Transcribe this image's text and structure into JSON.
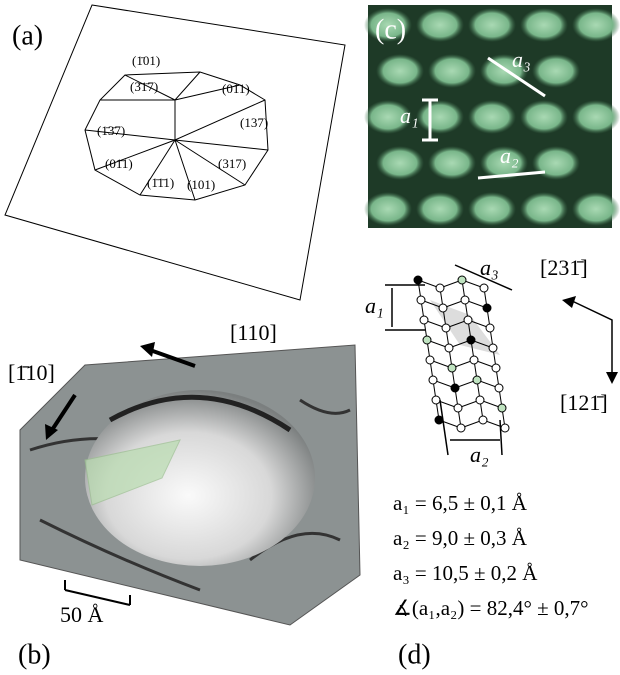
{
  "panel_a": {
    "label": "(a)",
    "facets": [
      "(1̄01)",
      "(3̄1̄7)",
      "(011)",
      "(1̄3̄7)",
      "(137)",
      "(01̄1)",
      "(317)",
      "(1̄1̄1)",
      "(101)"
    ]
  },
  "panel_b": {
    "label": "(b)",
    "direction_1": "[110]",
    "direction_2": "[1̄10]",
    "scale_bar": "50 Å"
  },
  "panel_c": {
    "label": "(c)",
    "vectors": [
      "a₃",
      "a₁",
      "a₂"
    ]
  },
  "panel_d": {
    "label": "(d)",
    "vectors": [
      "a₃",
      "a₁",
      "a₂"
    ],
    "direction_1": "[231̄]",
    "direction_2": "[121̄]",
    "equations": [
      "a₁ = 6,5 ± 0,1 Å",
      "a₂ = 9,0 ± 0,3 Å",
      "a₃ = 10,5 ± 0,2 Å",
      "∡(a₁,a₂) = 82,4° ± 0,7°"
    ]
  }
}
